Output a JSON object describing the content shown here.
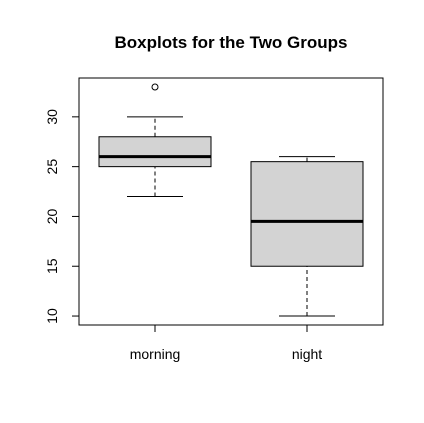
{
  "chart_data": {
    "type": "boxplot",
    "title": "Boxplots for the Two Groups",
    "xlabel": "",
    "ylabel": "",
    "categories": [
      "morning",
      "night"
    ],
    "boxes": [
      {
        "category": "morning",
        "whisker_low": 22,
        "q1": 25,
        "median": 26,
        "q3": 28,
        "whisker_high": 30,
        "outliers": [
          33
        ]
      },
      {
        "category": "night",
        "whisker_low": 10,
        "q1": 15,
        "median": 19.5,
        "q3": 25.5,
        "whisker_high": 26,
        "outliers": []
      }
    ],
    "y_ticks": [
      "10",
      "15",
      "20",
      "25",
      "30"
    ],
    "ylim": [
      9.1,
      33.9
    ],
    "grid": false,
    "box_fill": "#d3d3d3",
    "line_color": "#000000"
  }
}
